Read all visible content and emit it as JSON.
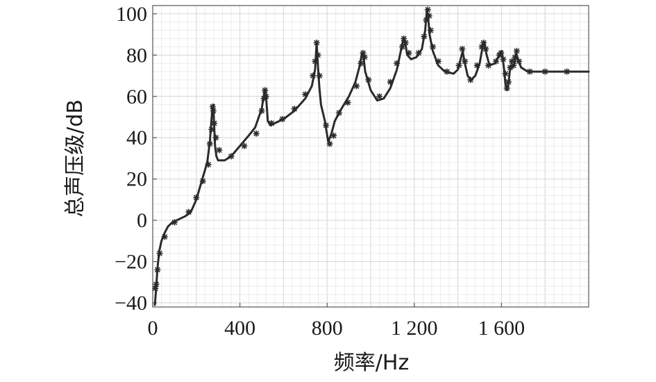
{
  "chart_data": {
    "type": "line",
    "xlabel": "频率/Hz",
    "ylabel": "总声压级/dB",
    "xlim": [
      0,
      2000
    ],
    "ylim": [
      -42,
      104
    ],
    "x_ticks": [
      0,
      400,
      800,
      1200,
      1600
    ],
    "x_tick_labels": [
      "0",
      "400",
      "800",
      "1 200",
      "1 600"
    ],
    "y_ticks": [
      -40,
      -20,
      0,
      20,
      40,
      60,
      80,
      100
    ],
    "y_tick_labels": [
      "−40",
      "−20",
      "0",
      "20",
      "40",
      "60",
      "80",
      "100"
    ],
    "grid": true,
    "colors": {
      "line": "#2b2b2b",
      "grid": "#d6d6d6"
    },
    "series": [
      {
        "x": [
          10,
          15,
          22,
          30,
          40,
          55,
          70,
          90,
          120,
          150,
          175,
          200,
          225,
          250,
          262,
          272,
          278,
          282,
          286,
          292,
          300,
          315,
          330,
          360,
          400,
          440,
          470,
          500,
          512,
          518,
          522,
          528,
          540,
          560,
          600,
          650,
          700,
          730,
          745,
          752,
          758,
          764,
          772,
          790,
          805,
          820,
          835,
          860,
          900,
          930,
          950,
          960,
          966,
          975,
          1000,
          1030,
          1060,
          1090,
          1120,
          1140,
          1150,
          1158,
          1168,
          1185,
          1210,
          1235,
          1250,
          1258,
          1264,
          1270,
          1285,
          1310,
          1340,
          1380,
          1400,
          1415,
          1422,
          1430,
          1445,
          1460,
          1480,
          1500,
          1515,
          1522,
          1530,
          1545,
          1570,
          1590,
          1600,
          1605,
          1612,
          1618,
          1625,
          1632,
          1638,
          1645,
          1652,
          1660,
          1668,
          1675,
          1690,
          1720,
          1800,
          1900,
          2000
        ],
        "y": [
          -41,
          -34,
          -23,
          -15,
          -10,
          -6,
          -3,
          -1,
          0.5,
          2,
          4,
          10,
          19,
          28,
          38,
          52,
          56,
          46,
          36,
          31,
          29,
          29,
          29,
          31,
          36,
          41,
          45,
          54,
          62,
          63,
          57,
          48,
          46,
          47,
          49,
          53,
          59,
          65,
          73,
          86,
          75,
          65,
          56,
          48,
          38,
          42,
          48,
          53,
          60,
          67,
          75,
          81,
          80,
          72,
          63,
          58,
          59,
          64,
          73,
          83,
          88,
          86,
          80,
          78,
          79,
          83,
          92,
          102,
          98,
          90,
          82,
          75,
          72,
          71,
          73,
          79,
          82,
          77,
          70,
          68,
          70,
          76,
          85,
          86,
          81,
          75,
          76,
          80,
          82,
          79,
          73,
          66,
          63,
          66,
          72,
          75,
          74,
          76,
          81,
          78,
          74,
          72,
          72,
          72,
          72
        ],
        "markers": [
          [
            12,
            -33
          ],
          [
            16,
            -31
          ],
          [
            22,
            -24
          ],
          [
            32,
            -16
          ],
          [
            55,
            -8
          ],
          [
            100,
            -1
          ],
          [
            165,
            4
          ],
          [
            200,
            11
          ],
          [
            230,
            19
          ],
          [
            255,
            27
          ],
          [
            262,
            37
          ],
          [
            270,
            44
          ],
          [
            275,
            55
          ],
          [
            278,
            53
          ],
          [
            282,
            47
          ],
          [
            290,
            40
          ],
          [
            305,
            34
          ],
          [
            360,
            31
          ],
          [
            420,
            36
          ],
          [
            475,
            42
          ],
          [
            500,
            53
          ],
          [
            510,
            59
          ],
          [
            515,
            63
          ],
          [
            520,
            60
          ],
          [
            545,
            47
          ],
          [
            595,
            49
          ],
          [
            650,
            54
          ],
          [
            700,
            61
          ],
          [
            735,
            70
          ],
          [
            745,
            77
          ],
          [
            752,
            86
          ],
          [
            758,
            80
          ],
          [
            765,
            70
          ],
          [
            795,
            46
          ],
          [
            812,
            37
          ],
          [
            830,
            41
          ],
          [
            855,
            52
          ],
          [
            895,
            57
          ],
          [
            935,
            65
          ],
          [
            955,
            76
          ],
          [
            965,
            81
          ],
          [
            972,
            79
          ],
          [
            990,
            68
          ],
          [
            1040,
            60
          ],
          [
            1090,
            67
          ],
          [
            1120,
            76
          ],
          [
            1145,
            84
          ],
          [
            1152,
            88
          ],
          [
            1160,
            86
          ],
          [
            1175,
            81
          ],
          [
            1220,
            81
          ],
          [
            1245,
            89
          ],
          [
            1255,
            97
          ],
          [
            1262,
            102
          ],
          [
            1268,
            99
          ],
          [
            1275,
            92
          ],
          [
            1285,
            84
          ],
          [
            1310,
            77
          ],
          [
            1350,
            72
          ],
          [
            1405,
            75
          ],
          [
            1420,
            83
          ],
          [
            1432,
            77
          ],
          [
            1458,
            68
          ],
          [
            1488,
            75
          ],
          [
            1510,
            84
          ],
          [
            1518,
            86
          ],
          [
            1528,
            83
          ],
          [
            1540,
            75
          ],
          [
            1575,
            77
          ],
          [
            1590,
            80
          ],
          [
            1598,
            81
          ],
          [
            1608,
            78
          ],
          [
            1618,
            71
          ],
          [
            1625,
            64
          ],
          [
            1632,
            67
          ],
          [
            1640,
            74
          ],
          [
            1648,
            77
          ],
          [
            1655,
            75
          ],
          [
            1662,
            79
          ],
          [
            1670,
            82
          ],
          [
            1680,
            77
          ],
          [
            1730,
            72
          ],
          [
            1800,
            72
          ],
          [
            1900,
            72
          ]
        ]
      }
    ]
  }
}
